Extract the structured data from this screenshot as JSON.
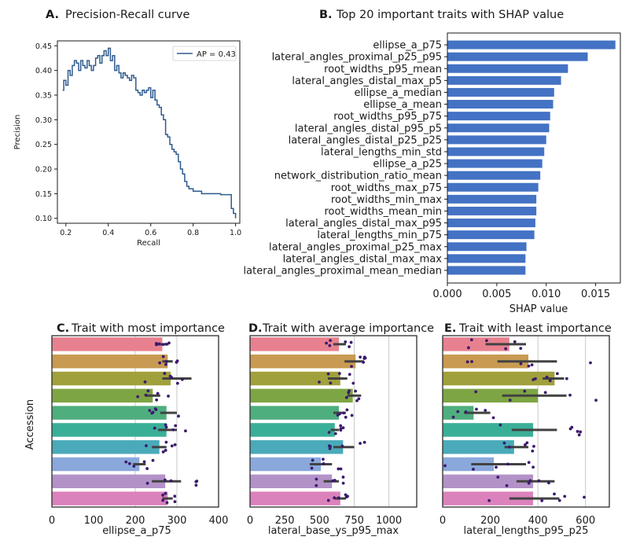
{
  "panelA": {
    "letter": "A.",
    "title": "Precision-Recall curve",
    "xlabel": "Recall",
    "ylabel": "Precision",
    "legend": "AP = 0.43",
    "color": "#2e5b8f",
    "chart_data": {
      "type": "line",
      "xlim": [
        0.16,
        1.02
      ],
      "ylim": [
        0.09,
        0.46
      ],
      "xticks": [
        "0.2",
        "0.4",
        "0.6",
        "0.8",
        "1.0"
      ],
      "yticks": [
        "0.10",
        "0.15",
        "0.20",
        "0.25",
        "0.30",
        "0.35",
        "0.40",
        "0.45"
      ],
      "x": [
        0.185,
        0.19,
        0.2,
        0.21,
        0.22,
        0.23,
        0.24,
        0.25,
        0.26,
        0.27,
        0.28,
        0.29,
        0.3,
        0.31,
        0.32,
        0.33,
        0.34,
        0.35,
        0.36,
        0.37,
        0.38,
        0.39,
        0.4,
        0.41,
        0.42,
        0.43,
        0.44,
        0.45,
        0.46,
        0.47,
        0.48,
        0.49,
        0.5,
        0.51,
        0.52,
        0.53,
        0.54,
        0.55,
        0.56,
        0.57,
        0.58,
        0.59,
        0.6,
        0.61,
        0.62,
        0.63,
        0.64,
        0.65,
        0.66,
        0.67,
        0.68,
        0.69,
        0.7,
        0.71,
        0.72,
        0.73,
        0.74,
        0.75,
        0.76,
        0.77,
        0.78,
        0.79,
        0.8,
        0.81,
        0.82,
        0.83,
        0.84,
        0.85,
        0.86,
        0.87,
        0.88,
        0.89,
        0.9,
        0.91,
        0.92,
        0.93,
        0.94,
        0.95,
        0.96,
        0.97,
        0.98,
        0.99,
        1.0
      ],
      "y": [
        0.36,
        0.38,
        0.37,
        0.4,
        0.39,
        0.41,
        0.42,
        0.415,
        0.4,
        0.42,
        0.41,
        0.405,
        0.42,
        0.41,
        0.4,
        0.41,
        0.425,
        0.43,
        0.415,
        0.43,
        0.44,
        0.43,
        0.445,
        0.42,
        0.43,
        0.4,
        0.41,
        0.395,
        0.385,
        0.395,
        0.39,
        0.385,
        0.38,
        0.39,
        0.385,
        0.36,
        0.355,
        0.35,
        0.36,
        0.355,
        0.36,
        0.365,
        0.345,
        0.36,
        0.34,
        0.33,
        0.325,
        0.31,
        0.3,
        0.27,
        0.265,
        0.25,
        0.24,
        0.235,
        0.23,
        0.215,
        0.2,
        0.19,
        0.175,
        0.165,
        0.16,
        0.16,
        0.155,
        0.155,
        0.155,
        0.155,
        0.15,
        0.15,
        0.15,
        0.15,
        0.15,
        0.15,
        0.15,
        0.15,
        0.15,
        0.148,
        0.148,
        0.148,
        0.148,
        0.148,
        0.12,
        0.11,
        0.1
      ]
    }
  },
  "panelB": {
    "letter": "B.",
    "title": "Top 20 important traits with SHAP value",
    "xlabel": "SHAP value",
    "color": "#4472c4",
    "chart_data": {
      "type": "bar",
      "orientation": "horizontal",
      "xlim": [
        0,
        0.0175
      ],
      "xticks": [
        "0.000",
        "0.005",
        "0.010",
        "0.015"
      ],
      "categories": [
        "ellipse_a_p75",
        "lateral_angles_proximal_p25_p95",
        "root_widths_p95_mean",
        "lateral_angles_distal_max_p5",
        "ellipse_a_median",
        "ellipse_a_mean",
        "root_widths_p95_p75",
        "lateral_angles_distal_p95_p5",
        "lateral_angles_distal_p25_p25",
        "lateral_lengths_min_std",
        "ellipse_a_p25",
        "network_distribution_ratio_mean",
        "root_widths_max_p75",
        "root_widths_min_max",
        "root_widths_mean_min",
        "lateral_angles_distal_max_p95",
        "lateral_lengths_min_p75",
        "lateral_angles_proximal_p25_max",
        "lateral_angles_distal_max_max",
        "lateral_angles_proximal_mean_median"
      ],
      "values": [
        0.017,
        0.0142,
        0.0122,
        0.0115,
        0.0108,
        0.0107,
        0.0104,
        0.0103,
        0.01,
        0.0098,
        0.0096,
        0.0094,
        0.0092,
        0.009,
        0.009,
        0.0089,
        0.0088,
        0.008,
        0.0079,
        0.0079
      ]
    }
  },
  "accession_label": "Accession",
  "panelC": {
    "letter": "C.",
    "title": "Trait with most importance",
    "xlabel": "ellipse_a_p75",
    "chart_data": {
      "type": "bar",
      "orientation": "horizontal",
      "xlim": [
        0,
        400
      ],
      "xticks": [
        "0",
        "100",
        "200",
        "300",
        "400"
      ],
      "gridlines": [
        200,
        300
      ],
      "values": [
        265,
        278,
        285,
        242,
        275,
        275,
        258,
        210,
        272,
        278
      ],
      "err_low": [
        250,
        265,
        265,
        225,
        260,
        255,
        240,
        195,
        240,
        265
      ],
      "err_high": [
        280,
        290,
        335,
        260,
        300,
        300,
        275,
        225,
        310,
        290
      ]
    }
  },
  "panelD": {
    "letter": "D.",
    "title": "Trait with average importance",
    "xlabel": "lateral_base_ys_p95_max",
    "chart_data": {
      "type": "bar",
      "orientation": "horizontal",
      "xlim": [
        0,
        1200
      ],
      "xticks": [
        "0",
        "250",
        "500",
        "750",
        "1000"
      ],
      "gridlines": [
        750,
        1000
      ],
      "values": [
        640,
        760,
        650,
        740,
        640,
        610,
        670,
        510,
        590,
        650
      ],
      "err_low": [
        600,
        680,
        560,
        700,
        600,
        580,
        600,
        430,
        530,
        610
      ],
      "err_high": [
        690,
        820,
        700,
        800,
        690,
        640,
        750,
        590,
        640,
        690
      ]
    }
  },
  "panelE": {
    "letter": "E.",
    "title": "Trait with least importance",
    "xlabel": "lateral_lengths_p95_p25",
    "chart_data": {
      "type": "bar",
      "orientation": "horizontal",
      "xlim": [
        0,
        700
      ],
      "xticks": [
        "0",
        "200",
        "400",
        "600"
      ],
      "gridlines": [
        400,
        600
      ],
      "values": [
        280,
        360,
        470,
        400,
        130,
        380,
        300,
        215,
        380,
        380
      ],
      "err_low": [
        180,
        230,
        420,
        250,
        90,
        290,
        260,
        120,
        310,
        280
      ],
      "err_high": [
        350,
        480,
        510,
        520,
        200,
        480,
        360,
        350,
        470,
        490
      ]
    }
  },
  "accession_colors": [
    "#e8818f",
    "#c99a52",
    "#a0a03c",
    "#7ea544",
    "#4fae7e",
    "#3aaf98",
    "#4aaab9",
    "#8aa8dc",
    "#b392c8",
    "#db82bc"
  ]
}
